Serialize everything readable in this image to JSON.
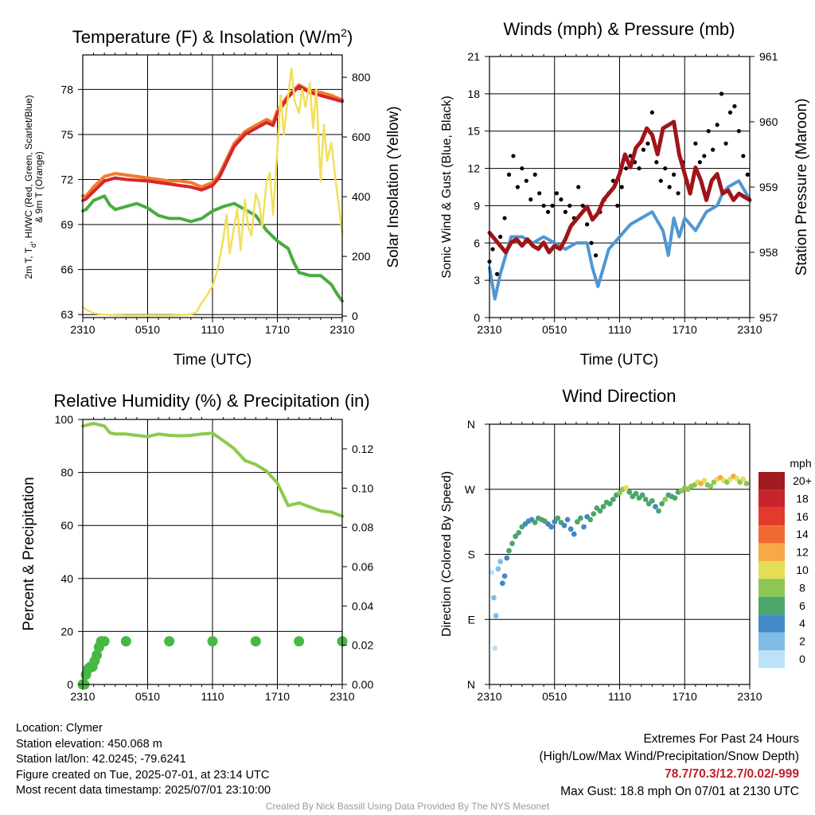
{
  "colors": {
    "red": "#d7262b",
    "orange": "#f07b2e",
    "green": "#4aab3f",
    "yellow": "#f2df5c",
    "blue": "#4f97d2",
    "black": "#000000",
    "maroon": "#a01418",
    "rh_green": "#8cc94d",
    "precip_green": "#48b845"
  },
  "chart_data": [
    {
      "id": "temperature",
      "type": "line",
      "title": "Temperature (F) & Insolation (W/m²)",
      "title_main": "Temperature (F) & Insolation (W/m",
      "title_sup": "2",
      "title_end": ")",
      "xlabel": "Time (UTC)",
      "ylabel_lines": [
        "2m T, T",
        "d",
        ", HI/WC (Red, Green, Scarlet/Blue)",
        "& 9m T (Orange)"
      ],
      "y2label": "Solar Insolation (Yellow)",
      "x_range_hours": [
        0,
        24
      ],
      "x_ticks": [
        "2310",
        "0510",
        "1110",
        "1710",
        "2310"
      ],
      "ylim": [
        62.8,
        80.3
      ],
      "y_ticks": [
        63,
        66,
        69,
        72,
        75,
        78
      ],
      "y2lim": [
        -5,
        875
      ],
      "y2_ticks": [
        0,
        200,
        400,
        600,
        800
      ],
      "series": [
        {
          "key": "9m_t",
          "color": "orange",
          "x": [
            0,
            0.3,
            1,
            2,
            3,
            4,
            6,
            7,
            8,
            9,
            10,
            11,
            12,
            12.6,
            13,
            14,
            15,
            16,
            17,
            17.6,
            18,
            19,
            20,
            21,
            22,
            23,
            24
          ],
          "y": [
            70.9,
            70.9,
            71.5,
            72.2,
            72.4,
            72.3,
            72.1,
            72.0,
            71.9,
            71.9,
            71.8,
            71.5,
            71.8,
            72.3,
            72.9,
            74.4,
            75.2,
            75.6,
            76.0,
            75.8,
            76.6,
            77.6,
            78.3,
            77.9,
            77.8,
            77.6,
            77.3
          ]
        },
        {
          "key": "2m_t",
          "color": "red",
          "x": [
            0,
            0.3,
            1,
            2,
            3,
            4,
            6,
            7,
            8,
            9,
            10,
            11,
            12,
            12.6,
            13,
            14,
            15,
            16,
            17,
            17.6,
            18,
            19,
            20,
            21,
            22,
            23,
            24
          ],
          "y": [
            70.6,
            70.7,
            71.2,
            71.9,
            72.1,
            72.0,
            71.9,
            71.8,
            71.7,
            71.6,
            71.5,
            71.3,
            71.6,
            72.1,
            72.7,
            74.2,
            75.0,
            75.4,
            75.8,
            75.6,
            76.4,
            77.5,
            78.2,
            77.8,
            77.6,
            77.4,
            77.2
          ]
        },
        {
          "key": "2m_td",
          "color": "green",
          "x": [
            0,
            0.3,
            1,
            2,
            2.5,
            3,
            4,
            5,
            6,
            7,
            8,
            9,
            10,
            11,
            12,
            13,
            14,
            15,
            16,
            17,
            18,
            19,
            19.5,
            20,
            21,
            22,
            23,
            23.5,
            24
          ],
          "y": [
            69.9,
            70.0,
            70.6,
            70.9,
            70.3,
            70.0,
            70.2,
            70.4,
            70.1,
            69.6,
            69.4,
            69.4,
            69.2,
            69.4,
            69.9,
            70.2,
            70.4,
            70.0,
            69.6,
            68.6,
            67.9,
            67.4,
            66.5,
            65.8,
            65.6,
            65.6,
            65.0,
            64.4,
            63.9
          ]
        },
        {
          "key": "insolation",
          "color": "yellow",
          "axis": "y2",
          "x": [
            0,
            0.5,
            1,
            2,
            3,
            4,
            5,
            6,
            7,
            8,
            9,
            10,
            10.5,
            11,
            11.5,
            12,
            12.5,
            13,
            13.3,
            13.6,
            14,
            14.3,
            14.6,
            15,
            15.3,
            15.6,
            16,
            16.3,
            16.6,
            17,
            17.3,
            17.6,
            18,
            18.3,
            18.6,
            19,
            19.3,
            19.6,
            20,
            20.3,
            20.6,
            21,
            21.3,
            21.6,
            22,
            22.3,
            22.6,
            23,
            23.5,
            24
          ],
          "y": [
            30,
            18,
            10,
            5,
            3,
            2,
            2,
            2,
            2,
            2,
            3,
            6,
            12,
            45,
            70,
            100,
            160,
            260,
            340,
            210,
            300,
            360,
            220,
            390,
            300,
            270,
            410,
            380,
            300,
            450,
            480,
            340,
            560,
            740,
            610,
            740,
            830,
            720,
            680,
            760,
            700,
            780,
            630,
            760,
            450,
            640,
            520,
            580,
            420,
            280
          ]
        }
      ]
    },
    {
      "id": "winds",
      "type": "line",
      "title": "Winds (mph) & Pressure (mb)",
      "xlabel": "Time (UTC)",
      "ylabel": "Sonic Wind & Gust (Blue, Black)",
      "y2label": "Station Pressure (Maroon)",
      "x_range_hours": [
        0,
        24
      ],
      "x_ticks": [
        "2310",
        "0510",
        "1110",
        "1710",
        "2310"
      ],
      "ylim": [
        0,
        21
      ],
      "y_ticks": [
        0,
        3,
        6,
        9,
        12,
        15,
        18,
        21
      ],
      "y2lim": [
        957,
        961
      ],
      "y2_ticks": [
        957,
        958,
        959,
        960,
        961
      ],
      "series": [
        {
          "key": "sonic_wind",
          "color": "blue",
          "x": [
            0,
            0.5,
            1,
            1.5,
            2,
            3,
            4,
            5,
            6,
            7,
            8,
            9,
            9.5,
            10,
            11,
            12,
            13,
            14,
            15,
            16,
            16.5,
            17,
            17.5,
            18,
            19,
            20,
            21,
            21.5,
            22,
            23,
            24
          ],
          "y": [
            4.0,
            1.5,
            3.5,
            5.0,
            6.5,
            6.5,
            6.0,
            6.5,
            6.0,
            5.5,
            6.0,
            6.0,
            4.0,
            2.5,
            5.5,
            6.5,
            7.5,
            8.0,
            8.5,
            7.0,
            5.0,
            8.0,
            6.5,
            8.0,
            7.0,
            8.5,
            9.0,
            10.0,
            10.5,
            11.0,
            9.5
          ]
        },
        {
          "key": "gust",
          "color": "black",
          "style": "dots",
          "x": [
            0,
            0.3,
            0.7,
            1,
            1.4,
            1.8,
            2.2,
            2.6,
            3.0,
            3.4,
            3.8,
            4.2,
            4.6,
            5.0,
            5.4,
            5.8,
            6.2,
            6.6,
            7.0,
            7.4,
            7.8,
            8.2,
            8.6,
            9.0,
            9.4,
            9.8,
            10.2,
            10.6,
            11.0,
            11.4,
            11.8,
            12.2,
            12.6,
            13.0,
            13.4,
            13.8,
            14.2,
            14.6,
            15.0,
            15.4,
            15.8,
            16.2,
            16.6,
            17.0,
            17.4,
            17.8,
            18.2,
            18.6,
            19.0,
            19.4,
            19.8,
            20.2,
            20.6,
            21.0,
            21.4,
            21.8,
            22.2,
            22.6,
            23.0,
            23.4,
            23.8
          ],
          "y": [
            4.5,
            5.5,
            3.5,
            6.5,
            8.0,
            11.5,
            13.0,
            10.5,
            12.0,
            11.0,
            9.5,
            11.5,
            10.0,
            9.0,
            8.5,
            9.0,
            10.0,
            9.5,
            8.5,
            9.0,
            8.0,
            10.5,
            9.0,
            7.5,
            6.0,
            5.0,
            8.5,
            9.5,
            10.0,
            11.0,
            9.0,
            10.5,
            12.0,
            13.0,
            12.5,
            12.0,
            13.5,
            14.0,
            16.5,
            12.5,
            11.0,
            12.0,
            10.5,
            11.5,
            10.0,
            12.5,
            11.0,
            10.5,
            14.0,
            12.5,
            13.0,
            15.0,
            13.5,
            15.5,
            18.0,
            14.0,
            16.5,
            17.0,
            15.0,
            13.0,
            11.5
          ]
        },
        {
          "key": "pressure",
          "color": "maroon",
          "axis": "y2",
          "x": [
            0,
            0.5,
            1,
            1.5,
            2,
            2.5,
            3,
            3.5,
            4,
            4.5,
            5,
            5.5,
            6,
            6.5,
            7,
            7.5,
            8,
            8.5,
            9,
            9.5,
            10,
            10.5,
            11,
            11.5,
            12,
            12.5,
            13,
            13.5,
            14,
            14.5,
            15,
            15.5,
            16,
            16.5,
            17,
            17.5,
            18,
            18.5,
            19,
            19.5,
            20,
            20.5,
            21,
            21.5,
            22,
            22.5,
            23,
            23.5,
            24
          ],
          "y": [
            958.3,
            958.2,
            958.1,
            958.0,
            958.15,
            958.2,
            958.1,
            958.2,
            958.1,
            958.05,
            958.15,
            958.0,
            958.1,
            958.05,
            958.2,
            958.4,
            958.5,
            958.6,
            958.7,
            958.5,
            958.6,
            958.8,
            958.9,
            959.0,
            959.2,
            959.5,
            959.3,
            959.6,
            959.7,
            959.9,
            959.8,
            959.5,
            959.9,
            959.95,
            960.0,
            959.5,
            959.2,
            958.9,
            959.3,
            959.1,
            958.8,
            959.1,
            959.2,
            958.9,
            958.95,
            958.8,
            958.9,
            958.85,
            958.8
          ]
        }
      ]
    },
    {
      "id": "humidity",
      "type": "line",
      "title": "Relative Humidity (%) & Precipitation (in)",
      "ylabel": "Percent & Precipitation",
      "x_range_hours": [
        0,
        24
      ],
      "x_ticks": [
        "2310",
        "0510",
        "1110",
        "1710",
        "2310"
      ],
      "ylim": [
        0,
        100
      ],
      "y_ticks": [
        0,
        20,
        40,
        60,
        80,
        100
      ],
      "y2lim": [
        0,
        0.135
      ],
      "y2_ticks": [
        "0.00",
        "0.02",
        "0.04",
        "0.06",
        "0.08",
        "0.10",
        "0.12"
      ],
      "series": [
        {
          "key": "rh",
          "color": "rh_green",
          "x": [
            0,
            0.5,
            1,
            2,
            2.5,
            3,
            4,
            5,
            6,
            7,
            8,
            9,
            10,
            11,
            12,
            13,
            14,
            15,
            16,
            17,
            18,
            19,
            20,
            21,
            22,
            23,
            24
          ],
          "y": [
            97.5,
            98.0,
            98.5,
            97.5,
            95.0,
            94.5,
            94.5,
            94.0,
            93.5,
            94.5,
            94.0,
            93.8,
            94.0,
            94.5,
            94.8,
            92.0,
            89.0,
            84.5,
            83.0,
            80.5,
            76.0,
            67.5,
            68.5,
            67.0,
            65.5,
            65.0,
            63.5
          ]
        },
        {
          "key": "precip",
          "color": "precip_green",
          "axis": "y2",
          "style": "dots",
          "x": [
            0,
            0.15,
            0.3,
            0.5,
            0.7,
            0.9,
            1.1,
            1.3,
            1.5,
            1.7,
            2,
            4,
            8,
            12,
            16,
            20,
            24
          ],
          "y": [
            0.0,
            0.0,
            0.005,
            0.008,
            0.009,
            0.009,
            0.012,
            0.015,
            0.019,
            0.022,
            0.022,
            0.022,
            0.022,
            0.022,
            0.022,
            0.022,
            0.022
          ]
        }
      ]
    },
    {
      "id": "wind_direction",
      "type": "scatter",
      "title": "Wind Direction",
      "ylabel": "Direction (Colored By Speed)",
      "x_range_hours": [
        0,
        24
      ],
      "x_ticks": [
        "2310",
        "0510",
        "1110",
        "1710",
        "2310"
      ],
      "ylim": [
        0,
        360
      ],
      "y_ticks": [
        "N",
        "E",
        "S",
        "W",
        "N"
      ],
      "y_tick_values": [
        0,
        90,
        180,
        270,
        360
      ],
      "legend_title": "mph",
      "legend_labels": [
        "20+",
        "18",
        "16",
        "14",
        "12",
        "10",
        "8",
        "6",
        "4",
        "2",
        "0"
      ],
      "legend_colors": [
        "#a01c1f",
        "#c8242b",
        "#e23a2c",
        "#f06a32",
        "#f7a848",
        "#e4de55",
        "#8cc653",
        "#4aa66b",
        "#4389c5",
        "#7fbde6",
        "#bde2f7"
      ],
      "x": [
        0.2,
        0.4,
        0.5,
        0.6,
        0.8,
        1.0,
        1.2,
        1.4,
        1.6,
        1.8,
        2.1,
        2.4,
        2.7,
        3.0,
        3.3,
        3.6,
        3.9,
        4.2,
        4.5,
        4.8,
        5.1,
        5.4,
        5.7,
        6.0,
        6.3,
        6.6,
        6.9,
        7.2,
        7.5,
        7.8,
        8.1,
        8.4,
        8.7,
        9.0,
        9.3,
        9.6,
        9.9,
        10.2,
        10.5,
        10.8,
        11.1,
        11.4,
        11.7,
        12.0,
        12.3,
        12.6,
        12.9,
        13.2,
        13.5,
        13.8,
        14.1,
        14.4,
        14.7,
        15.0,
        15.3,
        15.6,
        15.9,
        16.2,
        16.5,
        16.8,
        17.1,
        17.4,
        17.7,
        18.0,
        18.3,
        18.6,
        18.9,
        19.2,
        19.5,
        19.8,
        20.1,
        20.4,
        20.7,
        21.0,
        21.3,
        21.6,
        21.9,
        22.2,
        22.5,
        22.8,
        23.1,
        23.4,
        23.7
      ],
      "y": [
        155,
        120,
        50,
        95,
        160,
        170,
        140,
        150,
        175,
        185,
        195,
        205,
        210,
        218,
        222,
        226,
        228,
        224,
        230,
        228,
        226,
        222,
        218,
        225,
        230,
        224,
        220,
        228,
        215,
        208,
        225,
        230,
        218,
        232,
        228,
        236,
        244,
        240,
        246,
        252,
        250,
        256,
        262,
        265,
        270,
        272,
        266,
        260,
        264,
        258,
        262,
        256,
        250,
        254,
        246,
        240,
        250,
        256,
        262,
        260,
        258,
        266,
        268,
        272,
        270,
        274,
        276,
        280,
        278,
        282,
        276,
        274,
        280,
        284,
        286,
        282,
        280,
        284,
        288,
        285,
        280,
        284,
        278
      ],
      "speeds": [
        1,
        2,
        1,
        2,
        2,
        3,
        4,
        5,
        5,
        6,
        6,
        6,
        7,
        6,
        5,
        4,
        5,
        6,
        6,
        7,
        6,
        5,
        4,
        5,
        6,
        6,
        5,
        4,
        4,
        5,
        6,
        6,
        4,
        5,
        6,
        7,
        7,
        6,
        7,
        7,
        6,
        7,
        7,
        8,
        9,
        10,
        7,
        6,
        7,
        6,
        6,
        7,
        6,
        6,
        5,
        6,
        7,
        8,
        7,
        6,
        6,
        7,
        8,
        9,
        8,
        9,
        8,
        11,
        12,
        10,
        9,
        8,
        9,
        10,
        12,
        10,
        9,
        10,
        12,
        11,
        9,
        10,
        8
      ]
    }
  ],
  "info": {
    "location": "Location: Clymer",
    "elevation": "Station elevation: 450.068 m",
    "latlon": "Station lat/lon: 42.0245; -79.6241",
    "created": "Figure created on Tue, 2025-07-01, at 23:14 UTC",
    "recent": "Most recent data timestamp: 2025/07/01 23:10:00"
  },
  "extremes": {
    "heading": "Extremes For Past 24 Hours",
    "legend": "(High/Low/Max Wind/Precipitation/Snow Depth)",
    "values": "78.7/70.3/12.7/0.02/-999",
    "gust": "Max Gust: 18.8 mph On 07/01 at 2130 UTC"
  },
  "credit": "Created By Nick Bassill Using Data Provided By The NYS Mesonet"
}
